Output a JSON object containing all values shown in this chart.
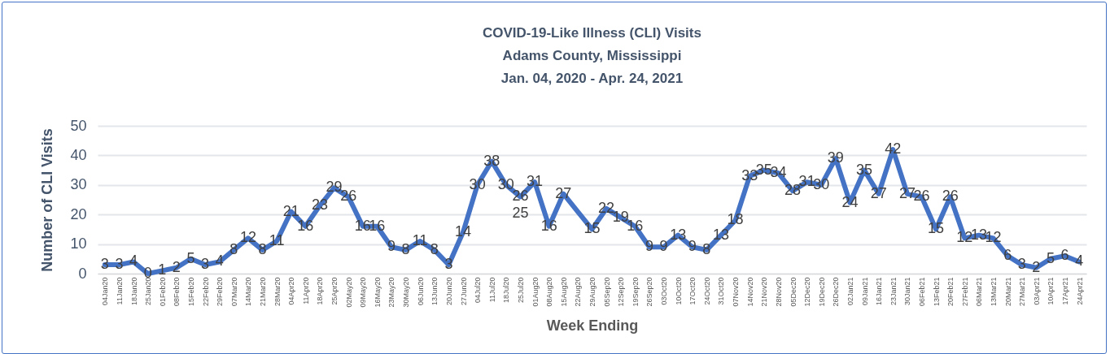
{
  "chart_data": {
    "type": "line",
    "title": "COVID-19-Like Illness (CLI) Visits",
    "subtitle": "Adams County, Mississippi\nJan. 04, 2020 - Apr. 24, 2021",
    "xlabel": "Week Ending",
    "ylabel": "Number of CLI Visits",
    "categories": [
      "04Jan20",
      "11Jan20",
      "18Jan20",
      "25Jan20",
      "01Feb20",
      "08Feb20",
      "15Feb20",
      "22Feb20",
      "29Feb20",
      "07Mar20",
      "14Mar20",
      "21Mar20",
      "28Mar20",
      "04Apr20",
      "11Apr20",
      "18Apr20",
      "25Apr20",
      "02May20",
      "09May20",
      "16May20",
      "23May20",
      "30May20",
      "06Jun20",
      "13Jun20",
      "20Jun20",
      "27Jun20",
      "04Jul20",
      "11Jul20",
      "18Jul20",
      "25Jul20",
      "01Aug20",
      "08Aug20",
      "15Aug20",
      "22Aug20",
      "29Aug20",
      "05Sep20",
      "12Sep20",
      "19Sep20",
      "26Sep20",
      "03Oct20",
      "10Oct20",
      "17Oct20",
      "24Oct20",
      "31Oct20",
      "07Nov20",
      "14Nov20",
      "21Nov20",
      "28Nov20",
      "05Dec20",
      "12Dec20",
      "19Dec20",
      "26Dec20",
      "02Jan21",
      "09Jan21",
      "16Jan21",
      "23Jan21",
      "30Jan21",
      "06Feb21",
      "13Feb21",
      "20Feb21",
      "27Feb21",
      "06Mar21",
      "13Mar21",
      "20Mar21",
      "27Mar21",
      "03Apr21",
      "10Apr21",
      "17Apr21",
      "24Apr21"
    ],
    "series": [
      {
        "color": "#4472c4",
        "values": [
          3,
          3,
          4,
          0,
          1,
          2,
          5,
          3,
          4,
          8,
          12,
          8,
          11,
          21,
          16,
          23,
          29,
          26,
          16,
          16,
          9,
          8,
          11,
          8,
          3,
          14,
          30,
          38,
          30,
          26,
          31,
          16,
          27,
          21,
          15,
          22,
          19,
          16,
          9,
          9,
          13,
          9,
          8,
          13,
          18,
          33,
          35,
          34,
          28,
          31,
          30,
          39,
          24,
          35,
          27,
          42,
          27,
          26,
          15,
          26,
          12,
          13,
          12,
          6,
          3,
          2,
          5,
          6,
          4
        ],
        "value_labels": [
          "3",
          "3",
          "4",
          "0",
          "1",
          "2",
          "5",
          "3",
          "4",
          "8",
          "12",
          "8",
          "11",
          "21",
          "16",
          "23",
          "29",
          "26",
          "16",
          "16",
          "9",
          "8",
          "11",
          "8",
          "3",
          "14",
          "30",
          "38",
          "30",
          "26",
          "31",
          "16",
          "27",
          null,
          "15",
          "22",
          "19",
          "16",
          "9",
          "9",
          "13",
          "9",
          "8",
          "13",
          "18",
          "33",
          "35",
          "34",
          "28",
          "31",
          "30",
          "39",
          "24",
          "35",
          "27",
          "42",
          "27",
          "26",
          "15",
          "26",
          "12",
          "13",
          "12",
          "6",
          "3",
          "2",
          "5",
          "6",
          "4"
        ]
      }
    ],
    "annotations": [
      {
        "text": "25",
        "x": "25Jul20",
        "y": 25
      }
    ],
    "ylim": [
      0,
      50
    ],
    "yticks": [
      0,
      10,
      20,
      30,
      40,
      50
    ],
    "grid": "y",
    "marker": "none",
    "line_style": "solid"
  }
}
